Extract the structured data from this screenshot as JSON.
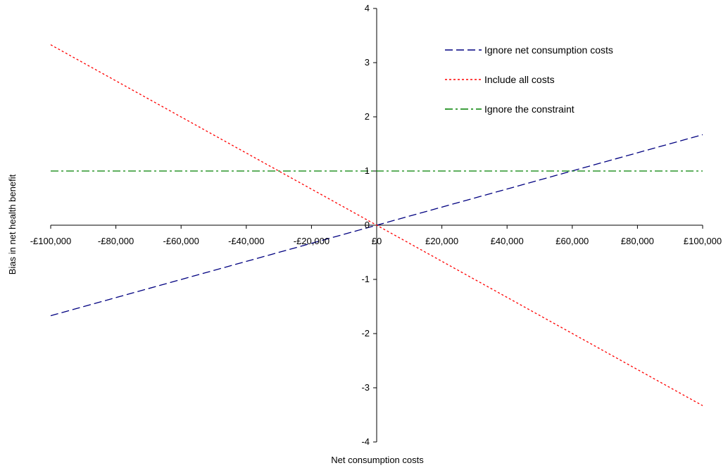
{
  "chart_data": {
    "type": "line",
    "xlabel": "Net consumption costs",
    "ylabel": "Bias in net health benefit",
    "xlim": [
      -100000,
      100000
    ],
    "ylim": [
      -4,
      4
    ],
    "x_ticks": [
      -100000,
      -80000,
      -60000,
      -40000,
      -20000,
      0,
      20000,
      40000,
      60000,
      80000,
      100000
    ],
    "x_tick_labels": [
      "-£100,000",
      "-£80,000",
      "-£60,000",
      "-£40,000",
      "-£20,000",
      "£0",
      "£20,000",
      "£40,000",
      "£60,000",
      "£80,000",
      "£100,000"
    ],
    "y_ticks": [
      -4,
      -3,
      -2,
      -1,
      0,
      1,
      2,
      3,
      4
    ],
    "y_tick_labels": [
      "-4",
      "-3",
      "-2",
      "-1",
      "0",
      "1",
      "2",
      "3",
      "4"
    ],
    "grid": false,
    "legend_position": "top-right",
    "series": [
      {
        "name": "Ignore net consumption costs",
        "color": "#000080",
        "style": "dashed",
        "x": [
          -100000,
          0,
          100000
        ],
        "y": [
          -1.67,
          0,
          1.67
        ]
      },
      {
        "name": "Include all costs",
        "color": "#ff0000",
        "style": "dotted",
        "x": [
          -100000,
          0,
          100000
        ],
        "y": [
          3.33,
          0,
          -3.33
        ]
      },
      {
        "name": "Ignore the constraint",
        "color": "#008000",
        "style": "dash-dot",
        "x": [
          -100000,
          0,
          100000
        ],
        "y": [
          1,
          1,
          1
        ]
      }
    ]
  }
}
